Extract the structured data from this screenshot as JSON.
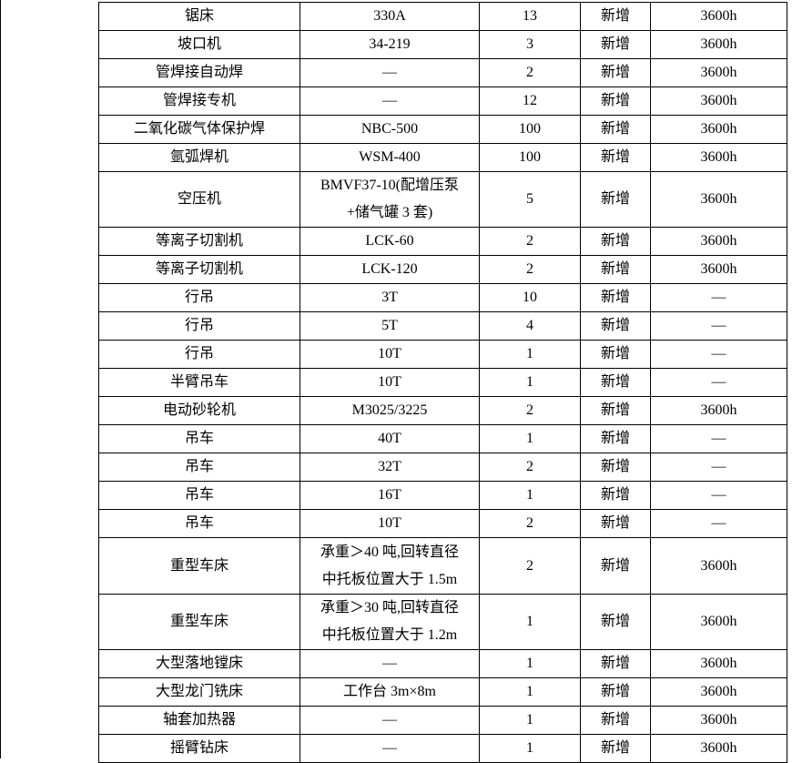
{
  "rows": [
    {
      "name": "锯床",
      "model": "330A",
      "qty": "13",
      "status": "新增",
      "hours": "3600h"
    },
    {
      "name": "坡口机",
      "model": "34-219",
      "qty": "3",
      "status": "新增",
      "hours": "3600h"
    },
    {
      "name": "管焊接自动焊",
      "model": "—",
      "qty": "2",
      "status": "新增",
      "hours": "3600h"
    },
    {
      "name": "管焊接专机",
      "model": "—",
      "qty": "12",
      "status": "新增",
      "hours": "3600h"
    },
    {
      "name": "二氧化碳气体保护焊",
      "model": "NBC-500",
      "qty": "100",
      "status": "新增",
      "hours": "3600h"
    },
    {
      "name": "氩弧焊机",
      "model": "WSM-400",
      "qty": "100",
      "status": "新增",
      "hours": "3600h"
    },
    {
      "name": "空压机",
      "model": "BMVF37-10(配增压泵",
      "model2": "+储气罐 3 套)",
      "qty": "5",
      "status": "新增",
      "hours": "3600h"
    },
    {
      "name": "等离子切割机",
      "model": "LCK-60",
      "qty": "2",
      "status": "新增",
      "hours": "3600h"
    },
    {
      "name": "等离子切割机",
      "model": "LCK-120",
      "qty": "2",
      "status": "新增",
      "hours": "3600h"
    },
    {
      "name": "行吊",
      "model": "3T",
      "qty": "10",
      "status": "新增",
      "hours": "—"
    },
    {
      "name": "行吊",
      "model": "5T",
      "qty": "4",
      "status": "新增",
      "hours": "—"
    },
    {
      "name": "行吊",
      "model": "10T",
      "qty": "1",
      "status": "新增",
      "hours": "—"
    },
    {
      "name": "半臂吊车",
      "model": "10T",
      "qty": "1",
      "status": "新增",
      "hours": "—"
    },
    {
      "name": "电动砂轮机",
      "model": "M3025/3225",
      "qty": "2",
      "status": "新增",
      "hours": "3600h"
    },
    {
      "name": "吊车",
      "model": "40T",
      "qty": "1",
      "status": "新增",
      "hours": "—"
    },
    {
      "name": "吊车",
      "model": "32T",
      "qty": "2",
      "status": "新增",
      "hours": "—"
    },
    {
      "name": "吊车",
      "model": "16T",
      "qty": "1",
      "status": "新增",
      "hours": "—"
    },
    {
      "name": "吊车",
      "model": "10T",
      "qty": "2",
      "status": "新增",
      "hours": "—"
    },
    {
      "name": "重型车床",
      "model": "承重＞40 吨,回转直径",
      "model2": "中托板位置大于 1.5m",
      "qty": "2",
      "status": "新增",
      "hours": "3600h"
    },
    {
      "name": "重型车床",
      "model": "承重＞30 吨,回转直径",
      "model2": "中托板位置大于 1.2m",
      "qty": "1",
      "status": "新增",
      "hours": "3600h"
    },
    {
      "name": "大型落地镗床",
      "model": "—",
      "qty": "1",
      "status": "新增",
      "hours": "3600h"
    },
    {
      "name": "大型龙门铣床",
      "model": "工作台 3m×8m",
      "qty": "1",
      "status": "新增",
      "hours": "3600h"
    },
    {
      "name": "轴套加热器",
      "model": "—",
      "qty": "1",
      "status": "新增",
      "hours": "3600h"
    },
    {
      "name": "摇臂钻床",
      "model": "—",
      "qty": "1",
      "status": "新增",
      "hours": "3600h"
    }
  ]
}
